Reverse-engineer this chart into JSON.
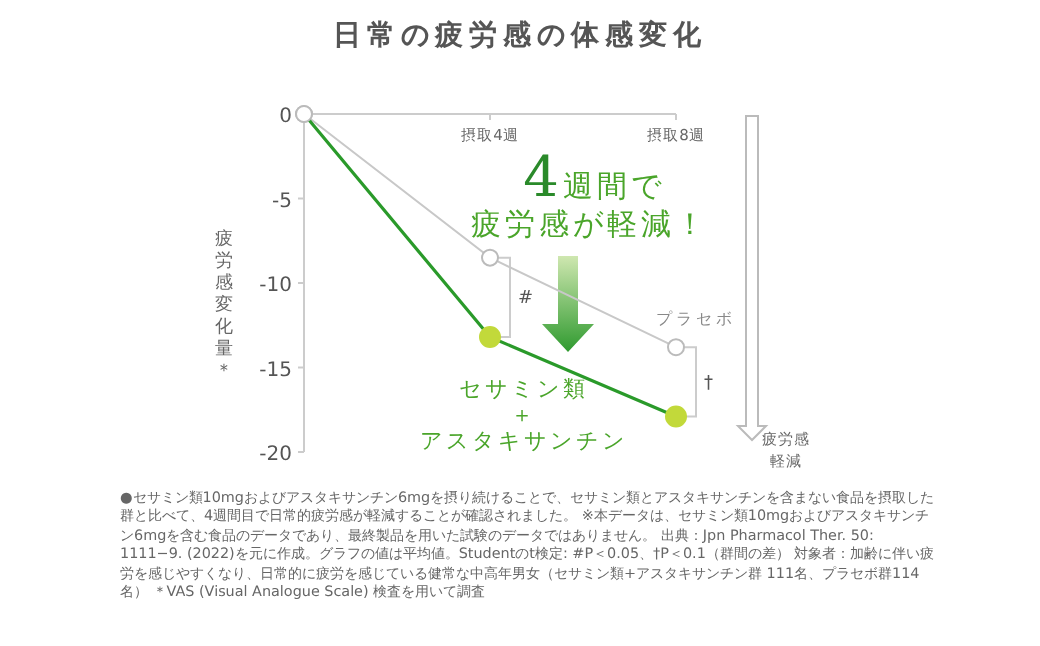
{
  "chart_data": {
    "type": "line",
    "title": "日常の疲労感の体感変化",
    "ylabel": "疲労感変化量＊",
    "categories": [
      null,
      "摂取4週",
      "摂取8週"
    ],
    "series": [
      {
        "name": "プラセボ",
        "color": "#c8c8c8",
        "values": [
          0,
          -8.5,
          -13.8
        ]
      },
      {
        "name": "セサミン類＋アスタキサンチン",
        "color": "#2a9a2a",
        "colors": [
          "#ffffff",
          "#c2d93a",
          "#c2d93a"
        ],
        "values": [
          0,
          -13.2,
          -17.9
        ]
      }
    ],
    "ylim": [
      -20,
      0
    ],
    "yticks": [
      0,
      -5,
      -10,
      -15,
      -20
    ],
    "grid": false,
    "legend": false,
    "marker": "circle",
    "line_style": "solid",
    "annotations": [
      "4週間で疲労感が軽減！",
      "#",
      "†",
      "疲労感軽減",
      "●セサミン類10mgおよびアスタキサンチン6mgを摂り続けることで、セサミン類とアスタキサンチンを含まない食品を摂取した群と比べて、4週間目で日常的疲労感が軽減することが確認されました。 ※本データは、セサミン類10mgおよびアスタキサンチン6mgを含む食品のデータであり、最終製品を用いた試験のデータではありません。 出典：Jpn Pharmacol Ther. 50: 1111−9. (2022)を元に作成。グラフの値は平均値。Studentのt検定: #P＜0.05、†P＜0.1（群間の差） 対象者：加齢に伴い疲労を感じやすくなり、日常的に疲労を感じている健常な中高年男女（セサミン類+アスタキサンチン群 111名、プラセボ群114名） ＊VAS (Visual Analogue Scale) 検査を用いて調査"
    ]
  }
}
